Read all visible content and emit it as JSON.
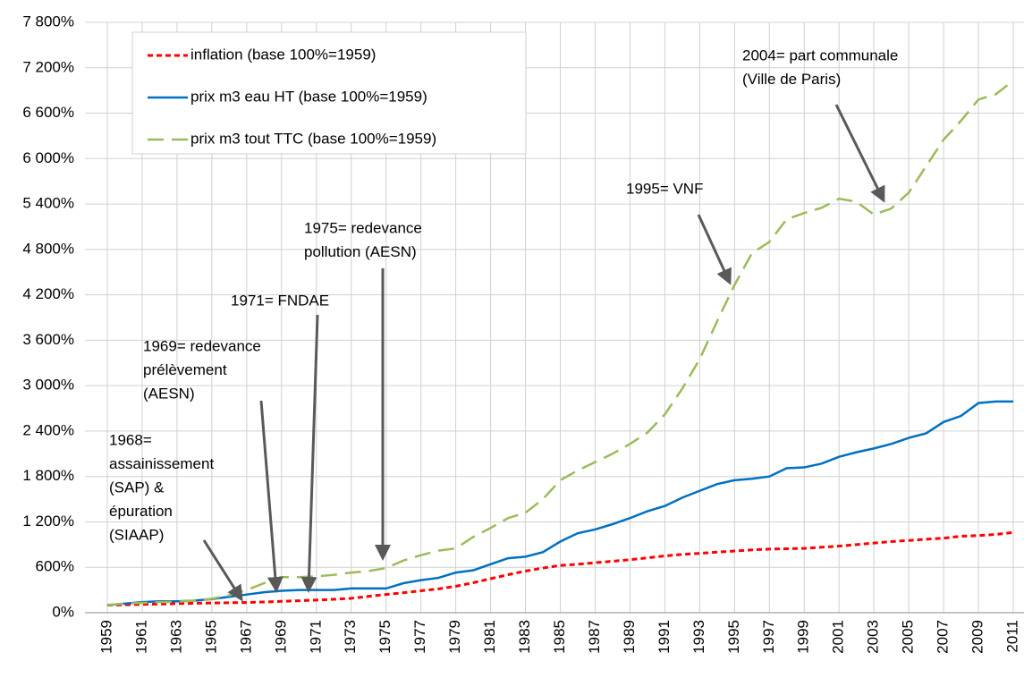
{
  "chart_data": {
    "type": "line",
    "x": [
      1959,
      1960,
      1961,
      1962,
      1963,
      1964,
      1965,
      1966,
      1967,
      1968,
      1969,
      1970,
      1971,
      1972,
      1973,
      1974,
      1975,
      1976,
      1977,
      1978,
      1979,
      1980,
      1981,
      1982,
      1983,
      1984,
      1985,
      1986,
      1987,
      1988,
      1989,
      1990,
      1991,
      1992,
      1993,
      1994,
      1995,
      1996,
      1997,
      1998,
      1999,
      2000,
      2001,
      2002,
      2003,
      2004,
      2005,
      2006,
      2007,
      2008,
      2009,
      2010,
      2011
    ],
    "series": [
      {
        "name": "inflation (base 100%=1959)",
        "color": "#ff0000",
        "values": [
          100,
          105,
          110,
          115,
          120,
          125,
          128,
          132,
          135,
          142,
          150,
          158,
          167,
          177,
          190,
          216,
          241,
          264,
          289,
          315,
          349,
          396,
          449,
          502,
          550,
          590,
          625,
          640,
          660,
          680,
          700,
          725,
          750,
          770,
          785,
          800,
          815,
          830,
          840,
          845,
          850,
          865,
          880,
          900,
          920,
          940,
          955,
          970,
          985,
          1010,
          1020,
          1035,
          1060
        ]
      },
      {
        "name": "prix m3 eau HT (base 100%=1959)",
        "color": "#0070c0",
        "values": [
          100,
          120,
          140,
          150,
          150,
          160,
          180,
          210,
          240,
          270,
          290,
          300,
          300,
          300,
          320,
          320,
          320,
          390,
          430,
          460,
          530,
          560,
          640,
          720,
          740,
          800,
          940,
          1050,
          1100,
          1170,
          1250,
          1340,
          1410,
          1520,
          1610,
          1700,
          1750,
          1770,
          1800,
          1910,
          1920,
          1970,
          2060,
          2120,
          2170,
          2230,
          2310,
          2370,
          2520,
          2600,
          2770,
          2790,
          2790
        ]
      },
      {
        "name": "prix m3 tout TTC (base 100%=1959)",
        "color": "#9bbb59",
        "values": [
          100,
          120,
          130,
          140,
          145,
          160,
          185,
          230,
          300,
          390,
          470,
          470,
          480,
          500,
          530,
          550,
          590,
          690,
          760,
          820,
          850,
          1000,
          1120,
          1250,
          1320,
          1500,
          1750,
          1880,
          1990,
          2100,
          2230,
          2380,
          2620,
          2960,
          3350,
          3850,
          4330,
          4750,
          4900,
          5200,
          5280,
          5350,
          5470,
          5430,
          5260,
          5340,
          5550,
          5900,
          6250,
          6500,
          6780,
          6850,
          7030
        ]
      }
    ],
    "xlim": [
      1959,
      2011
    ],
    "xticks": [
      1959,
      1961,
      1963,
      1965,
      1967,
      1969,
      1971,
      1973,
      1975,
      1977,
      1979,
      1981,
      1983,
      1985,
      1987,
      1989,
      1991,
      1993,
      1995,
      1997,
      1999,
      2001,
      2003,
      2005,
      2007,
      2009,
      2011
    ],
    "ylim": [
      0,
      7800
    ],
    "yticks": [
      {
        "value": 0,
        "label": "0%"
      },
      {
        "value": 600,
        "label": "600%"
      },
      {
        "value": 1200,
        "label": "1 200%"
      },
      {
        "value": 1800,
        "label": "1 800%"
      },
      {
        "value": 2400,
        "label": "2 400%"
      },
      {
        "value": 3000,
        "label": "3 000%"
      },
      {
        "value": 3600,
        "label": "3 600%"
      },
      {
        "value": 4200,
        "label": "4 200%"
      },
      {
        "value": 4800,
        "label": "4 800%"
      },
      {
        "value": 5400,
        "label": "5 400%"
      },
      {
        "value": 6000,
        "label": "6 000%"
      },
      {
        "value": 6600,
        "label": "6 600%"
      },
      {
        "value": 7200,
        "label": "7 200%"
      },
      {
        "value": 7800,
        "label": "7 800%"
      }
    ],
    "grid": true,
    "legend": "upper left",
    "annotations": [
      [
        "1968=",
        "assainissement",
        "(SAP) &",
        "épuration",
        "(SIAAP)"
      ],
      [
        "1969= redevance",
        "prélèvement",
        "(AESN)"
      ],
      [
        "1971= FNDAE"
      ],
      [
        "1975= redevance",
        "pollution (AESN)"
      ],
      [
        "1995= VNF"
      ],
      [
        "2004= part communale",
        "(Ville de Paris)"
      ]
    ]
  }
}
